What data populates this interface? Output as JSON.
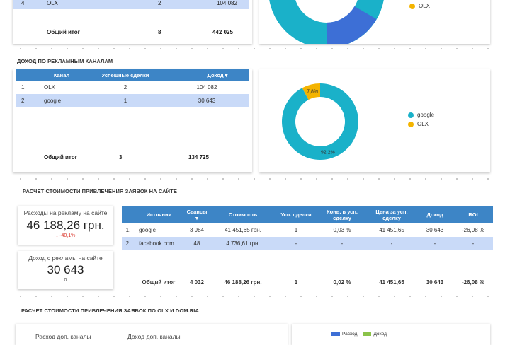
{
  "top_table": {
    "partial_row": {
      "num": "4.",
      "channel": "OLX",
      "deals": "2",
      "revenue": "104 082"
    },
    "total": {
      "label": "Общий итог",
      "deals": "8",
      "revenue": "442 025"
    }
  },
  "top_chart": {
    "legend": [
      {
        "label": "OLX",
        "color": "#f4b400"
      }
    ]
  },
  "income_section": {
    "title": "ДОХОД ПО РЕКЛАМНЫМ КАНАЛАМ",
    "headers": {
      "channel": "Канал",
      "deals": "Успешные сделки",
      "revenue": "Доход ▾"
    },
    "rows": [
      {
        "num": "1.",
        "channel": "OLX",
        "deals": "2",
        "revenue": "104 082"
      },
      {
        "num": "2.",
        "channel": "google",
        "deals": "1",
        "revenue": "30 643"
      }
    ],
    "total": {
      "label": "Общий итог",
      "deals": "3",
      "revenue": "134 725"
    }
  },
  "chart_data": {
    "type": "pie",
    "title": "",
    "categories": [
      "google",
      "OLX"
    ],
    "values": [
      92.2,
      7.8
    ],
    "value_labels": [
      "92,2%",
      "7,8%"
    ],
    "colors": [
      "#1ab1c9",
      "#f4b400"
    ],
    "legend_position": "right",
    "donut": true
  },
  "cost_section": {
    "title": "РАСЧЕТ СТОИМОСТИ ПРИВЛЕЧЕНИЯ ЗАЯВОК НА САЙТЕ",
    "scorecard_spend": {
      "label": "Расходы на рекламу на сайте",
      "value": "46 188,26 грн.",
      "delta": "↓ -40,1%"
    },
    "scorecard_income": {
      "label": "Доход с рекламы на сайте",
      "value": "30 643",
      "delta": "0"
    },
    "headers": {
      "source": "Источник",
      "sessions": "Сеансы",
      "cost": "Стоимость",
      "deals": "Усп. сделки",
      "conv": "Конв. в усп. сделку",
      "price": "Цена за усп. сделку",
      "revenue": "Доход",
      "roi": "ROI"
    },
    "rows": [
      {
        "num": "1.",
        "source": "google",
        "sessions": "3 984",
        "cost": "41 451,65 грн.",
        "deals": "1",
        "conv": "0,03 %",
        "price": "41 451,65",
        "revenue": "30 643",
        "roi": "-26,08 %"
      },
      {
        "num": "2.",
        "source": "facebook.com",
        "sessions": "48",
        "cost": "4 736,61 грн.",
        "deals": "-",
        "conv": "-",
        "price": "-",
        "revenue": "-",
        "roi": "-"
      }
    ],
    "total": {
      "label": "Общий итог",
      "sessions": "4 032",
      "cost": "46 188,26 грн.",
      "deals": "1",
      "conv": "0,02 %",
      "price": "41 451,65",
      "revenue": "30 643",
      "roi": "-26,08 %"
    }
  },
  "olx_section": {
    "title": "РАСЧЕТ СТОИМОСТИ ПРИВЛЕЧЕНИЯ ЗАЯВОК ПО OLX И DOM.RIA",
    "spend_label": "Расход доп. каналы",
    "income_label": "Доход доп. каналы",
    "legend": [
      {
        "label": "Расход",
        "color": "#3d6fd6"
      },
      {
        "label": "Доход",
        "color": "#8bc34a"
      }
    ]
  }
}
